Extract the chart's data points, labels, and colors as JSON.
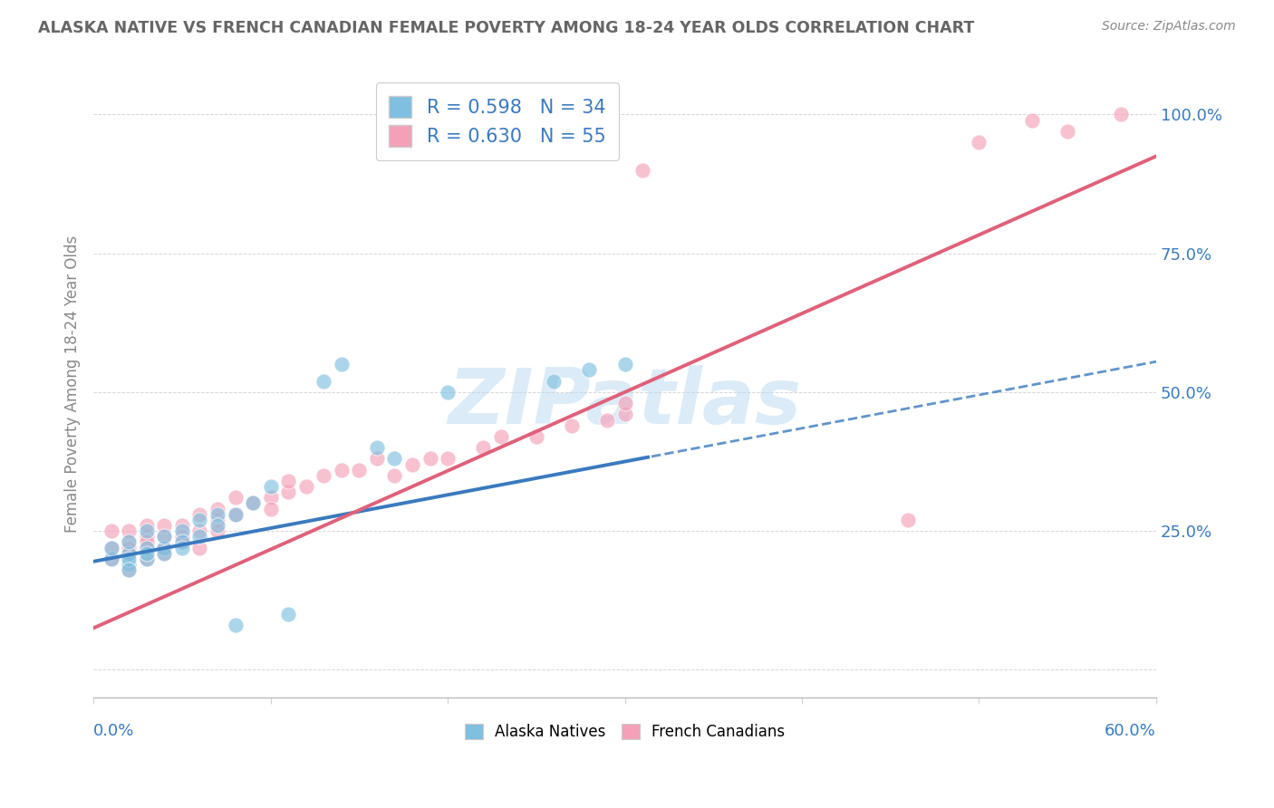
{
  "title": "ALASKA NATIVE VS FRENCH CANADIAN FEMALE POVERTY AMONG 18-24 YEAR OLDS CORRELATION CHART",
  "source": "Source: ZipAtlas.com",
  "ylabel": "Female Poverty Among 18-24 Year Olds",
  "xlim": [
    0.0,
    0.6
  ],
  "ylim": [
    -0.05,
    1.08
  ],
  "yticks": [
    0.0,
    0.25,
    0.5,
    0.75,
    1.0
  ],
  "ytick_labels": [
    "",
    "25.0%",
    "50.0%",
    "75.0%",
    "100.0%"
  ],
  "legend_r1": "R = 0.598",
  "legend_n1": "N = 34",
  "legend_r2": "R = 0.630",
  "legend_n2": "N = 55",
  "color_blue": "#7fbfdf",
  "color_pink": "#f4a0b8",
  "color_blue_line": "#3a7abf",
  "color_pink_line": "#e0607a",
  "color_blue_text": "#3a7abf",
  "watermark_color": "#b8d8f0",
  "alaska_x": [
    0.01,
    0.01,
    0.02,
    0.02,
    0.02,
    0.02,
    0.02,
    0.03,
    0.03,
    0.03,
    0.03,
    0.04,
    0.04,
    0.04,
    0.05,
    0.05,
    0.05,
    0.06,
    0.06,
    0.07,
    0.07,
    0.08,
    0.08,
    0.09,
    0.1,
    0.11,
    0.13,
    0.14,
    0.16,
    0.17,
    0.2,
    0.26,
    0.28,
    0.3
  ],
  "alaska_y": [
    0.2,
    0.22,
    0.19,
    0.21,
    0.23,
    0.2,
    0.18,
    0.22,
    0.25,
    0.2,
    0.21,
    0.22,
    0.24,
    0.21,
    0.25,
    0.23,
    0.22,
    0.27,
    0.24,
    0.28,
    0.26,
    0.28,
    0.08,
    0.3,
    0.33,
    0.1,
    0.52,
    0.55,
    0.4,
    0.38,
    0.5,
    0.52,
    0.54,
    0.55
  ],
  "french_x": [
    0.01,
    0.01,
    0.01,
    0.02,
    0.02,
    0.02,
    0.02,
    0.02,
    0.03,
    0.03,
    0.03,
    0.03,
    0.03,
    0.04,
    0.04,
    0.04,
    0.04,
    0.05,
    0.05,
    0.05,
    0.06,
    0.06,
    0.06,
    0.07,
    0.07,
    0.07,
    0.08,
    0.08,
    0.09,
    0.1,
    0.1,
    0.11,
    0.11,
    0.12,
    0.13,
    0.14,
    0.15,
    0.16,
    0.17,
    0.18,
    0.19,
    0.2,
    0.22,
    0.23,
    0.25,
    0.27,
    0.29,
    0.3,
    0.3,
    0.31,
    0.46,
    0.5,
    0.53,
    0.55,
    0.58
  ],
  "french_y": [
    0.2,
    0.22,
    0.25,
    0.18,
    0.21,
    0.23,
    0.25,
    0.22,
    0.2,
    0.22,
    0.24,
    0.26,
    0.23,
    0.22,
    0.24,
    0.26,
    0.21,
    0.23,
    0.26,
    0.24,
    0.25,
    0.28,
    0.22,
    0.27,
    0.29,
    0.25,
    0.28,
    0.31,
    0.3,
    0.31,
    0.29,
    0.32,
    0.34,
    0.33,
    0.35,
    0.36,
    0.36,
    0.38,
    0.35,
    0.37,
    0.38,
    0.38,
    0.4,
    0.42,
    0.42,
    0.44,
    0.45,
    0.46,
    0.48,
    0.9,
    0.27,
    0.95,
    0.99,
    0.97,
    1.0
  ]
}
